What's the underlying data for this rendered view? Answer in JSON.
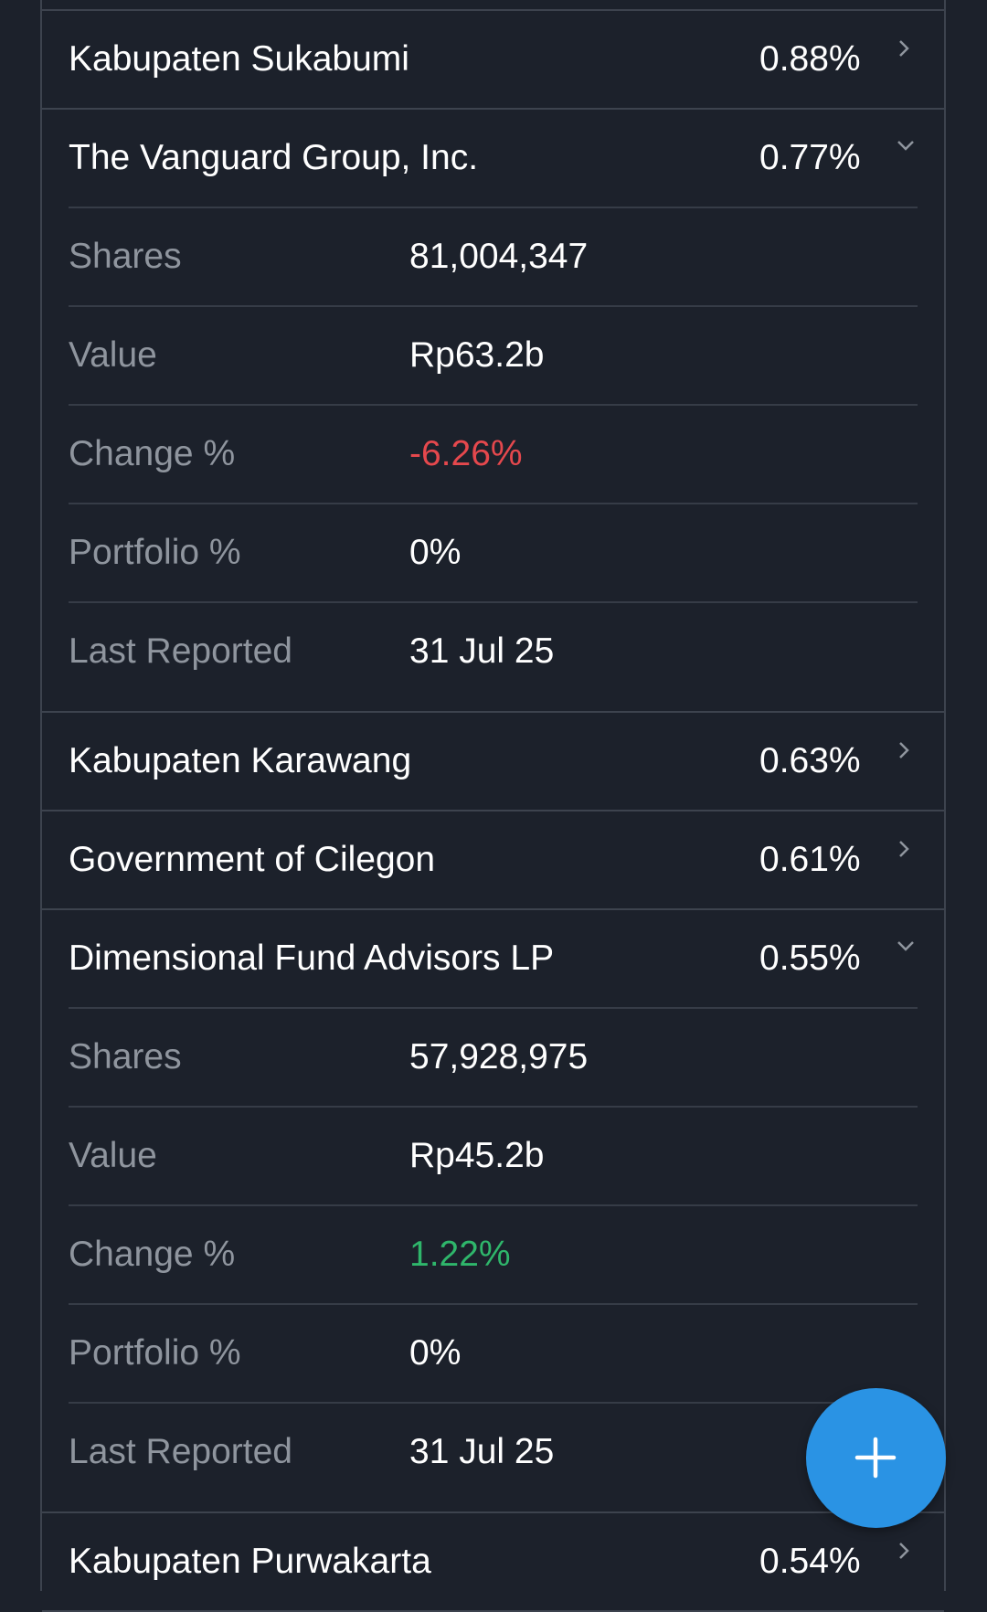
{
  "holders": [
    {
      "name": "Kabupaten Sukabumi",
      "pct": "0.88%",
      "expanded": false
    },
    {
      "name": "The Vanguard Group, Inc.",
      "pct": "0.77%",
      "expanded": true,
      "details": [
        {
          "label": "Shares",
          "value": "81,004,347"
        },
        {
          "label": "Value",
          "value": "Rp63.2b"
        },
        {
          "label": "Change %",
          "value": "-6.26%",
          "tone": "negative"
        },
        {
          "label": "Portfolio %",
          "value": "0%"
        },
        {
          "label": "Last Reported",
          "value": "31 Jul 25"
        }
      ]
    },
    {
      "name": "Kabupaten Karawang",
      "pct": "0.63%",
      "expanded": false
    },
    {
      "name": "Government of Cilegon",
      "pct": "0.61%",
      "expanded": false
    },
    {
      "name": "Dimensional Fund Advisors LP",
      "pct": "0.55%",
      "expanded": true,
      "details": [
        {
          "label": "Shares",
          "value": "57,928,975"
        },
        {
          "label": "Value",
          "value": "Rp45.2b"
        },
        {
          "label": "Change %",
          "value": "1.22%",
          "tone": "positive"
        },
        {
          "label": "Portfolio %",
          "value": "0%"
        },
        {
          "label": "Last Reported",
          "value": "31 Jul 25"
        }
      ]
    },
    {
      "name": "Kabupaten Purwakarta",
      "pct": "0.54%",
      "expanded": false
    }
  ],
  "fab": {
    "icon": "plus-icon"
  },
  "colors": {
    "background": "#1c212b",
    "divider": "#3d434e",
    "text": "#ffffff",
    "label": "#8f959e",
    "negative": "#e5484d",
    "positive": "#2fb66b",
    "fab": "#2a93e4"
  }
}
